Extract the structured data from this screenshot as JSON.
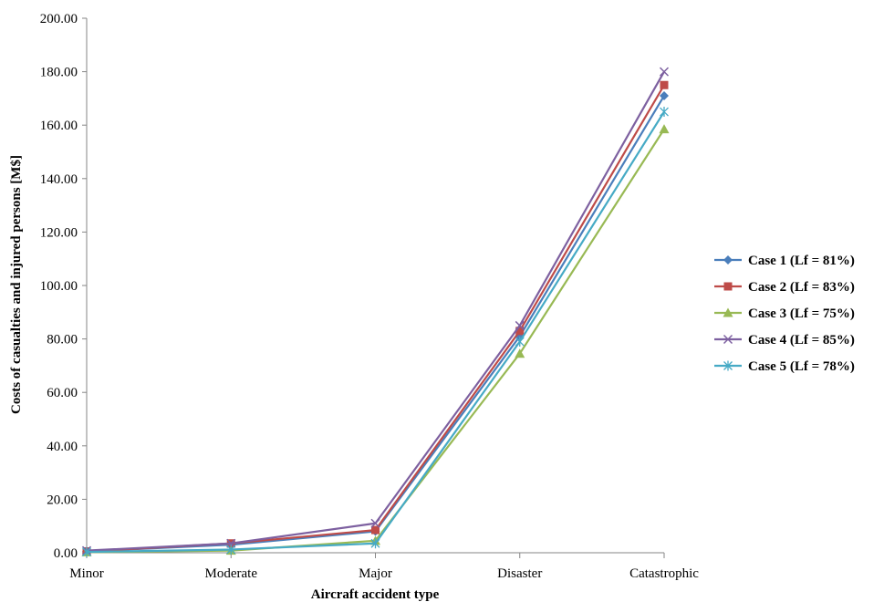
{
  "chart_data": {
    "type": "line",
    "title": "",
    "xlabel": "Aircraft accident type",
    "ylabel": "Costs of casualties and injured persons [M$]",
    "categories": [
      "Minor",
      "Moderate",
      "Major",
      "Disaster",
      "Catastrophic"
    ],
    "ylim": [
      0,
      200
    ],
    "yticks": [
      "0.00",
      "20.00",
      "40.00",
      "60.00",
      "80.00",
      "100.00",
      "120.00",
      "140.00",
      "160.00",
      "180.00",
      "200.00"
    ],
    "grid": false,
    "legend_position": "right",
    "series": [
      {
        "name": "Case 1 (Lf = 81%)",
        "color": "#4a7ebb",
        "marker": "diamond",
        "values": [
          0.5,
          3.0,
          8.0,
          81.0,
          171.0
        ]
      },
      {
        "name": "Case 2 (Lf = 83%)",
        "color": "#be4b48",
        "marker": "square",
        "values": [
          0.5,
          3.5,
          8.5,
          83.0,
          175.0
        ]
      },
      {
        "name": "Case 3 (Lf = 75%)",
        "color": "#98b954",
        "marker": "triangle",
        "values": [
          0.2,
          0.8,
          4.5,
          74.5,
          158.5
        ]
      },
      {
        "name": "Case 4 (Lf = 85%)",
        "color": "#7d60a0",
        "marker": "x",
        "values": [
          0.8,
          3.5,
          11.0,
          85.0,
          180.0
        ]
      },
      {
        "name": "Case 5 (Lf = 78%)",
        "color": "#46aac5",
        "marker": "star",
        "values": [
          0.3,
          1.2,
          3.5,
          79.0,
          165.0
        ]
      }
    ]
  }
}
